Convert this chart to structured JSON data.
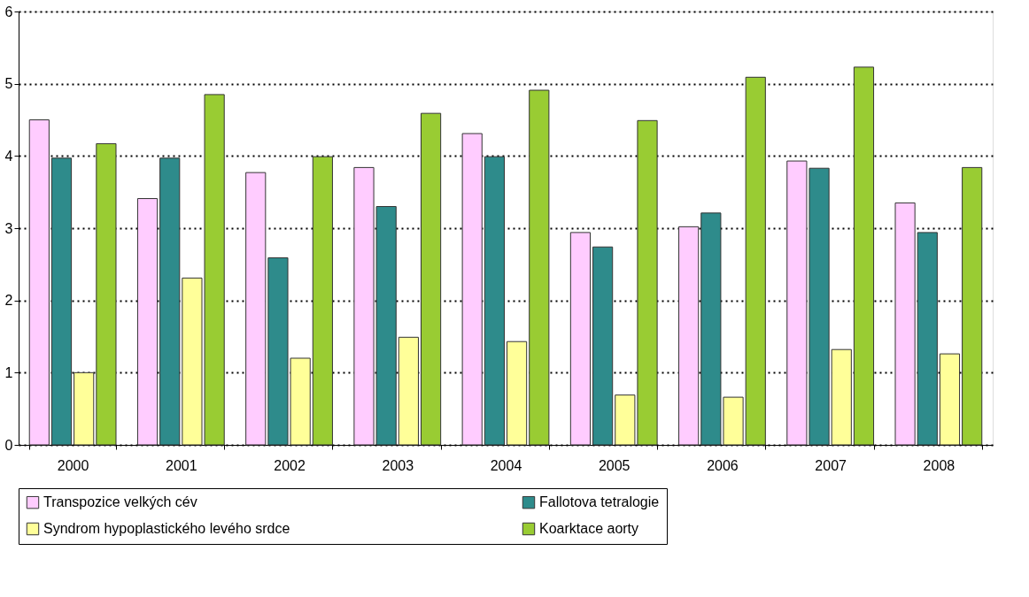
{
  "chart_data": {
    "type": "bar",
    "categories": [
      "2000",
      "2001",
      "2002",
      "2003",
      "2004",
      "2005",
      "2006",
      "2007",
      "2008"
    ],
    "series": [
      {
        "name": "Transpozice velkých cév",
        "color": "#ffccff",
        "values": [
          4.5,
          3.41,
          3.77,
          3.84,
          4.31,
          2.94,
          3.02,
          3.93,
          3.35
        ]
      },
      {
        "name": "Fallotova tetralogie",
        "color": "#2e8b8b",
        "values": [
          3.97,
          3.97,
          2.59,
          3.3,
          3.99,
          2.74,
          3.21,
          3.83,
          2.94
        ]
      },
      {
        "name": "Syndrom hypoplastického levého srdce",
        "color": "#ffff99",
        "values": [
          1.0,
          2.31,
          1.2,
          1.49,
          1.43,
          0.69,
          0.66,
          1.32,
          1.26
        ]
      },
      {
        "name": "Koarktace aorty",
        "color": "#99cc33",
        "values": [
          4.17,
          4.85,
          3.99,
          4.59,
          4.91,
          4.49,
          5.09,
          5.23,
          3.84
        ]
      }
    ],
    "ylim": [
      0,
      6
    ],
    "yticks": [
      0,
      1,
      2,
      3,
      4,
      5,
      6
    ],
    "grid": "y",
    "legend": "bottom"
  }
}
